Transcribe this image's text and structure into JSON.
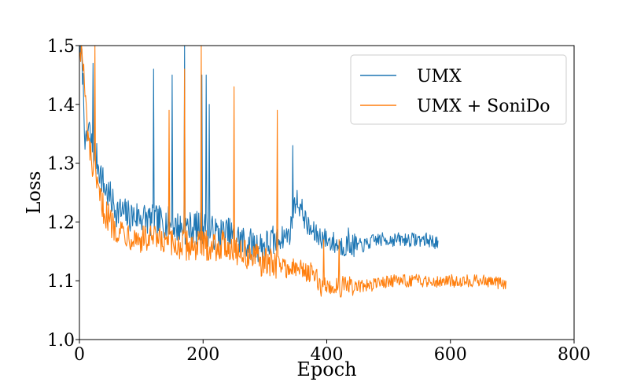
{
  "chart_data": {
    "type": "line",
    "title": "",
    "xlabel": "Epoch",
    "ylabel": "Loss",
    "xlim": [
      0,
      800
    ],
    "ylim": [
      1.0,
      1.5
    ],
    "xticks": [
      "0",
      "200",
      "400",
      "600",
      "800"
    ],
    "yticks": [
      "1.0",
      "1.1",
      "1.2",
      "1.3",
      "1.4",
      "1.5"
    ],
    "grid": false,
    "legend_position": "top-right",
    "series": [
      {
        "name": "UMX",
        "color": "#1f77b4",
        "anchors": [
          [
            1,
            1.5
          ],
          [
            5,
            1.46
          ],
          [
            10,
            1.32
          ],
          [
            15,
            1.36
          ],
          [
            20,
            1.33
          ],
          [
            30,
            1.3
          ],
          [
            40,
            1.26
          ],
          [
            50,
            1.24
          ],
          [
            60,
            1.22
          ],
          [
            80,
            1.21
          ],
          [
            100,
            1.21
          ],
          [
            120,
            1.2
          ],
          [
            140,
            1.2
          ],
          [
            160,
            1.19
          ],
          [
            180,
            1.19
          ],
          [
            200,
            1.19
          ],
          [
            220,
            1.18
          ],
          [
            240,
            1.18
          ],
          [
            260,
            1.17
          ],
          [
            280,
            1.16
          ],
          [
            300,
            1.16
          ],
          [
            320,
            1.17
          ],
          [
            340,
            1.18
          ],
          [
            350,
            1.24
          ],
          [
            360,
            1.22
          ],
          [
            370,
            1.19
          ],
          [
            380,
            1.18
          ],
          [
            400,
            1.17
          ],
          [
            420,
            1.16
          ],
          [
            440,
            1.16
          ],
          [
            460,
            1.16
          ],
          [
            480,
            1.17
          ],
          [
            500,
            1.17
          ],
          [
            520,
            1.17
          ],
          [
            540,
            1.17
          ],
          [
            560,
            1.17
          ],
          [
            580,
            1.165
          ]
        ],
        "spikes": [
          [
            22,
            1.47
          ],
          [
            120,
            1.46
          ],
          [
            150,
            1.45
          ],
          [
            170,
            1.5
          ],
          [
            198,
            1.45
          ],
          [
            205,
            1.45
          ],
          [
            210,
            1.4
          ],
          [
            345,
            1.33
          ],
          [
            435,
            1.19
          ]
        ],
        "noise": 0.022,
        "x_end": 580
      },
      {
        "name": "UMX + SoniDo",
        "color": "#ff7f0e",
        "anchors": [
          [
            1,
            1.5
          ],
          [
            5,
            1.48
          ],
          [
            10,
            1.4
          ],
          [
            15,
            1.33
          ],
          [
            20,
            1.3
          ],
          [
            30,
            1.25
          ],
          [
            40,
            1.22
          ],
          [
            50,
            1.2
          ],
          [
            60,
            1.19
          ],
          [
            80,
            1.18
          ],
          [
            100,
            1.17
          ],
          [
            120,
            1.17
          ],
          [
            140,
            1.16
          ],
          [
            160,
            1.16
          ],
          [
            180,
            1.16
          ],
          [
            200,
            1.16
          ],
          [
            220,
            1.16
          ],
          [
            240,
            1.16
          ],
          [
            260,
            1.15
          ],
          [
            280,
            1.14
          ],
          [
            300,
            1.13
          ],
          [
            320,
            1.13
          ],
          [
            340,
            1.12
          ],
          [
            360,
            1.12
          ],
          [
            380,
            1.11
          ],
          [
            390,
            1.09
          ],
          [
            400,
            1.09
          ],
          [
            420,
            1.09
          ],
          [
            440,
            1.09
          ],
          [
            460,
            1.09
          ],
          [
            480,
            1.095
          ],
          [
            500,
            1.1
          ],
          [
            520,
            1.1
          ],
          [
            540,
            1.1
          ],
          [
            560,
            1.1
          ],
          [
            580,
            1.1
          ],
          [
            600,
            1.1
          ],
          [
            620,
            1.1
          ],
          [
            640,
            1.1
          ],
          [
            660,
            1.1
          ],
          [
            680,
            1.095
          ],
          [
            690,
            1.095
          ]
        ],
        "spikes": [
          [
            25,
            1.5
          ],
          [
            145,
            1.39
          ],
          [
            170,
            1.46
          ],
          [
            197,
            1.5
          ],
          [
            250,
            1.43
          ],
          [
            320,
            1.39
          ],
          [
            395,
            1.17
          ],
          [
            420,
            1.17
          ]
        ],
        "noise": 0.02,
        "x_end": 690
      }
    ]
  }
}
